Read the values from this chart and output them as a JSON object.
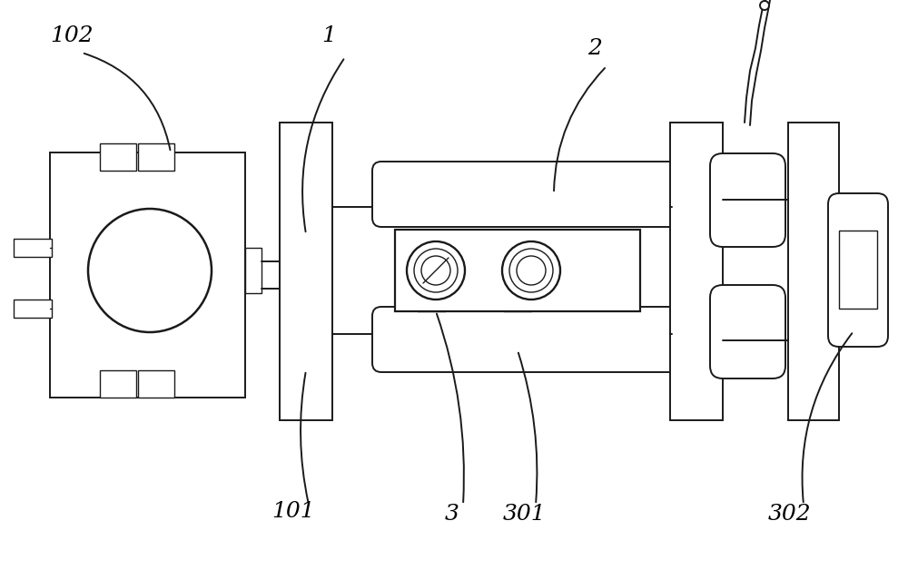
{
  "bg_color": "#ffffff",
  "line_color": "#1a1a1a",
  "line_width": 1.4,
  "label_fontsize": 18
}
